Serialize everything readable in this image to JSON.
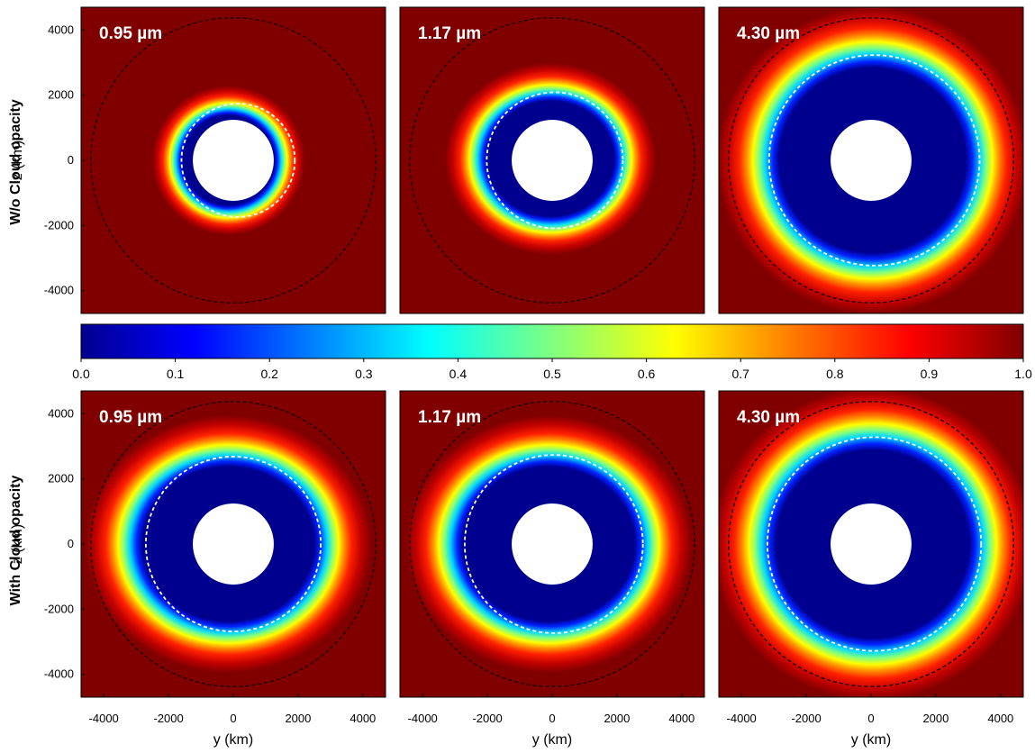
{
  "figure": {
    "row_labels": [
      "W/o Cloud opacity",
      "With Cloud opacity"
    ]
  },
  "chart_data": {
    "type": "heatmap",
    "quantity": "transmittance map (dimensionless, 0 to 1)",
    "xlabel": "y (km)",
    "ylabel": "z (km)",
    "xlim": [
      -4700,
      4700
    ],
    "ylim": [
      -4700,
      4700
    ],
    "xticks": [
      -4000,
      -2000,
      0,
      2000,
      4000
    ],
    "yticks": [
      -4000,
      -2000,
      0,
      2000,
      4000
    ],
    "colorbar": {
      "colormap": "jet",
      "range": [
        0.0,
        1.0
      ],
      "ticks": [
        "0.0",
        "0.1",
        "0.2",
        "0.3",
        "0.4",
        "0.5",
        "0.6",
        "0.7",
        "0.8",
        "0.9",
        "1.0"
      ]
    },
    "outer_dashed_circle_radius_km": 4400,
    "planet_radius_km": 1250,
    "panels": [
      {
        "row": 0,
        "col": 0,
        "label": "0.95 µm",
        "opaque_rx_km": 1520,
        "opaque_ry_km": 1480,
        "dx_km": -150,
        "dy_km": 0,
        "white_dashed_radius_km": 1750,
        "white_dashed_dx_km": 150
      },
      {
        "row": 0,
        "col": 1,
        "label": "1.17 µm",
        "opaque_rx_km": 2100,
        "opaque_ry_km": 1900,
        "dx_km": -50,
        "dy_km": 50,
        "white_dashed_radius_km": 2100,
        "white_dashed_dx_km": 80
      },
      {
        "row": 0,
        "col": 2,
        "label": "4.30 µm",
        "opaque_rx_km": 3100,
        "opaque_ry_km": 3050,
        "dx_km": 50,
        "dy_km": 0,
        "white_dashed_radius_km": 3250,
        "white_dashed_dx_km": 100
      },
      {
        "row": 1,
        "col": 0,
        "label": "0.95 µm",
        "opaque_rx_km": 2850,
        "opaque_ry_km": 2550,
        "dx_km": -150,
        "dy_km": 0,
        "white_dashed_radius_km": 2700,
        "white_dashed_dx_km": 0
      },
      {
        "row": 1,
        "col": 1,
        "label": "1.17 µm",
        "opaque_rx_km": 2850,
        "opaque_ry_km": 2550,
        "dx_km": -100,
        "dy_km": 0,
        "white_dashed_radius_km": 2750,
        "white_dashed_dx_km": 50
      },
      {
        "row": 1,
        "col": 2,
        "label": "4.30 µm",
        "opaque_rx_km": 3200,
        "opaque_ry_km": 3100,
        "dx_km": 50,
        "dy_km": 0,
        "white_dashed_radius_km": 3300,
        "white_dashed_dx_km": 100
      }
    ]
  }
}
